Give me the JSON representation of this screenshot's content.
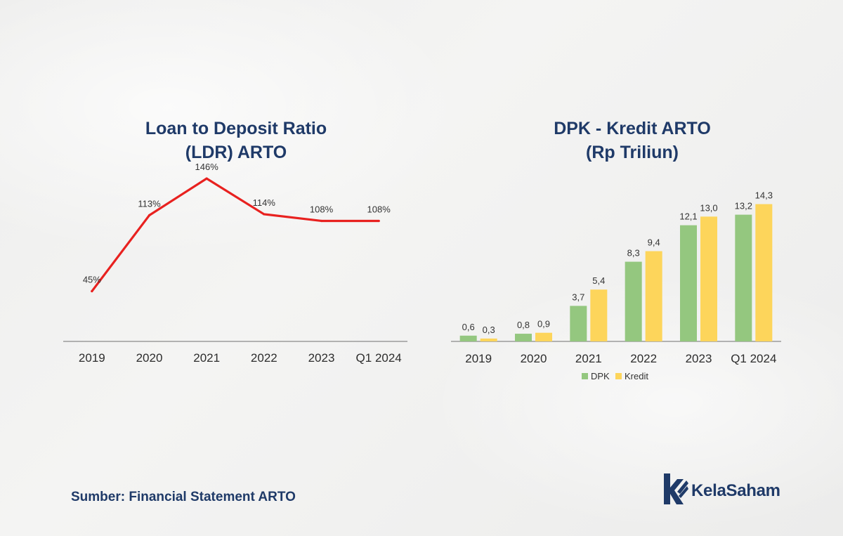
{
  "chart_data": [
    {
      "type": "line",
      "title": [
        "Loan to Deposit Ratio",
        "(LDR) ARTO"
      ],
      "categories": [
        "2019",
        "2020",
        "2021",
        "2022",
        "2023",
        "Q1 2024"
      ],
      "series": [
        {
          "name": "LDR",
          "values": [
            45,
            113,
            146,
            114,
            108,
            108
          ]
        }
      ],
      "data_labels": [
        "45%",
        "113%",
        "146%",
        "114%",
        "108%",
        "108%"
      ],
      "ylim": [
        0,
        170
      ],
      "color": "#e8211f"
    },
    {
      "type": "bar",
      "title": [
        "DPK - Kredit ARTO",
        "(Rp Triliun)"
      ],
      "categories": [
        "2019",
        "2020",
        "2021",
        "2022",
        "2023",
        "Q1 2024"
      ],
      "series": [
        {
          "name": "DPK",
          "values": [
            0.6,
            0.8,
            3.7,
            8.3,
            12.1,
            13.2
          ],
          "labels": [
            "0,6",
            "0,8",
            "3,7",
            "8,3",
            "12,1",
            "13,2"
          ],
          "color": "#94c77f"
        },
        {
          "name": "Kredit",
          "values": [
            0.3,
            0.9,
            5.4,
            9.4,
            13.0,
            14.3
          ],
          "labels": [
            "0,3",
            "0,9",
            "5,4",
            "9,4",
            "13,0",
            "14,3"
          ],
          "color": "#fdd55b"
        }
      ],
      "ylim": [
        0,
        15
      ],
      "legend": "bottom-center"
    }
  ],
  "source": "Sumber: Financial Statement ARTO",
  "brand": {
    "name": "KelaSaham",
    "icon": "kelasaham-logo-icon",
    "color": "#1f3a68"
  }
}
